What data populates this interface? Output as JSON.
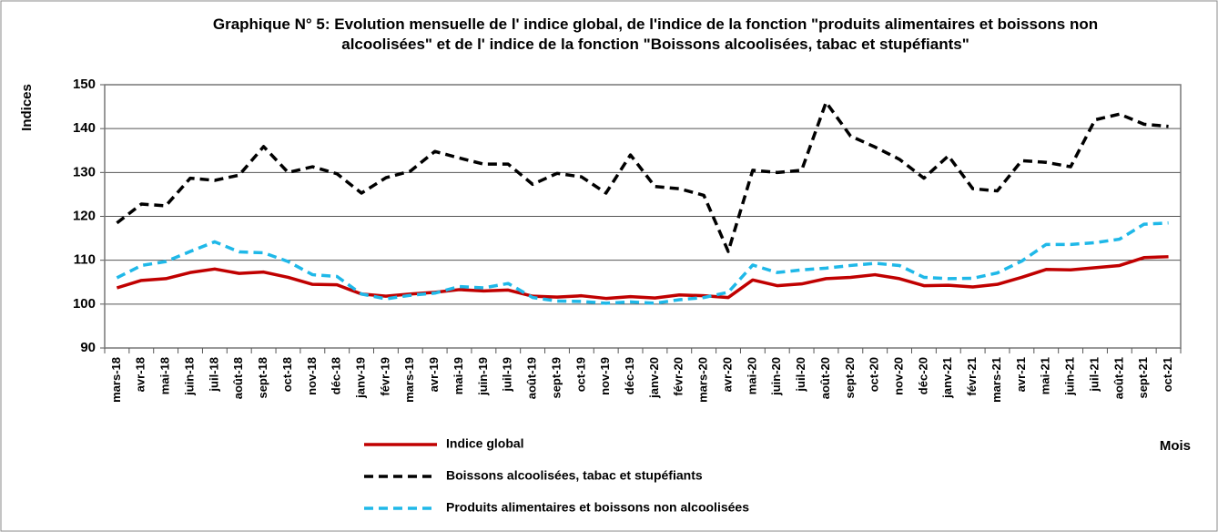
{
  "chart_data": {
    "type": "line",
    "title": "Graphique N° 5: Evolution mensuelle de l' indice global, de l'indice de la fonction \"produits alimentaires et boissons non alcoolisées\" et de l' indice de la fonction \"Boissons alcoolisées, tabac et stupéfiants\"",
    "y_label": "Indices",
    "x_label": "Mois",
    "categories": [
      "mars-18",
      "avr-18",
      "mai-18",
      "juin-18",
      "juil-18",
      "août-18",
      "sept-18",
      "oct-18",
      "nov-18",
      "déc-18",
      "janv-19",
      "févr-19",
      "mars-19",
      "avr-19",
      "mai-19",
      "juin-19",
      "juil-19",
      "août-19",
      "sept-19",
      "oct-19",
      "nov-19",
      "déc-19",
      "janv-20",
      "févr-20",
      "mars-20",
      "avr-20",
      "mai-20",
      "juin-20",
      "juil-20",
      "août-20",
      "sept-20",
      "oct-20",
      "nov-20",
      "déc-20",
      "janv-21",
      "févr-21",
      "mars-21",
      "avr-21",
      "mai-21",
      "juin-21",
      "juil-21",
      "août-21",
      "sept-21",
      "oct-21"
    ],
    "series": [
      {
        "name": "Indice global",
        "color": "#c00000",
        "dash": false,
        "values": [
          103.7,
          105.4,
          105.8,
          107.2,
          108.0,
          107.0,
          107.3,
          106.1,
          104.5,
          104.4,
          102.3,
          101.8,
          102.3,
          102.7,
          103.3,
          103.0,
          103.2,
          101.8,
          101.6,
          101.9,
          101.3,
          101.7,
          101.4,
          102.1,
          101.9,
          101.5,
          105.5,
          104.2,
          104.6,
          105.8,
          106.1,
          106.7,
          105.8,
          104.2,
          104.3,
          103.9,
          104.5,
          106.1,
          107.9,
          107.8,
          108.3,
          108.8,
          110.6,
          110.8
        ]
      },
      {
        "name": "Boissons alcoolisées, tabac et stupéfiants",
        "color": "#000000",
        "dash": true,
        "values": [
          118.5,
          122.8,
          122.4,
          128.7,
          128.2,
          129.4,
          135.9,
          130.0,
          131.3,
          129.7,
          125.3,
          128.8,
          130.3,
          134.8,
          133.3,
          131.9,
          131.9,
          127.3,
          129.8,
          129.0,
          125.3,
          134.0,
          126.8,
          126.3,
          124.8,
          112.0,
          130.5,
          130.0,
          130.5,
          146.0,
          138.3,
          135.8,
          133.0,
          128.7,
          133.8,
          126.3,
          125.8,
          132.7,
          132.3,
          131.3,
          142.0,
          143.3,
          141.0,
          140.5
        ]
      },
      {
        "name": "Produits alimentaires et boissons non alcoolisées",
        "color": "#1fb8e8",
        "dash": true,
        "values": [
          106.0,
          108.8,
          109.7,
          112.0,
          114.2,
          111.9,
          111.7,
          109.7,
          106.7,
          106.3,
          102.3,
          101.2,
          102.0,
          102.5,
          104.0,
          103.7,
          104.7,
          101.5,
          100.7,
          100.6,
          100.2,
          100.5,
          100.2,
          101.0,
          101.5,
          102.7,
          108.9,
          107.2,
          107.8,
          108.2,
          108.8,
          109.3,
          108.8,
          106.1,
          105.8,
          105.9,
          107.1,
          109.8,
          113.6,
          113.6,
          114.0,
          114.8,
          118.2,
          118.5
        ]
      }
    ],
    "ylim": [
      90,
      150
    ],
    "yticks": [
      90,
      100,
      110,
      120,
      130,
      140,
      150
    ],
    "grid": true
  }
}
